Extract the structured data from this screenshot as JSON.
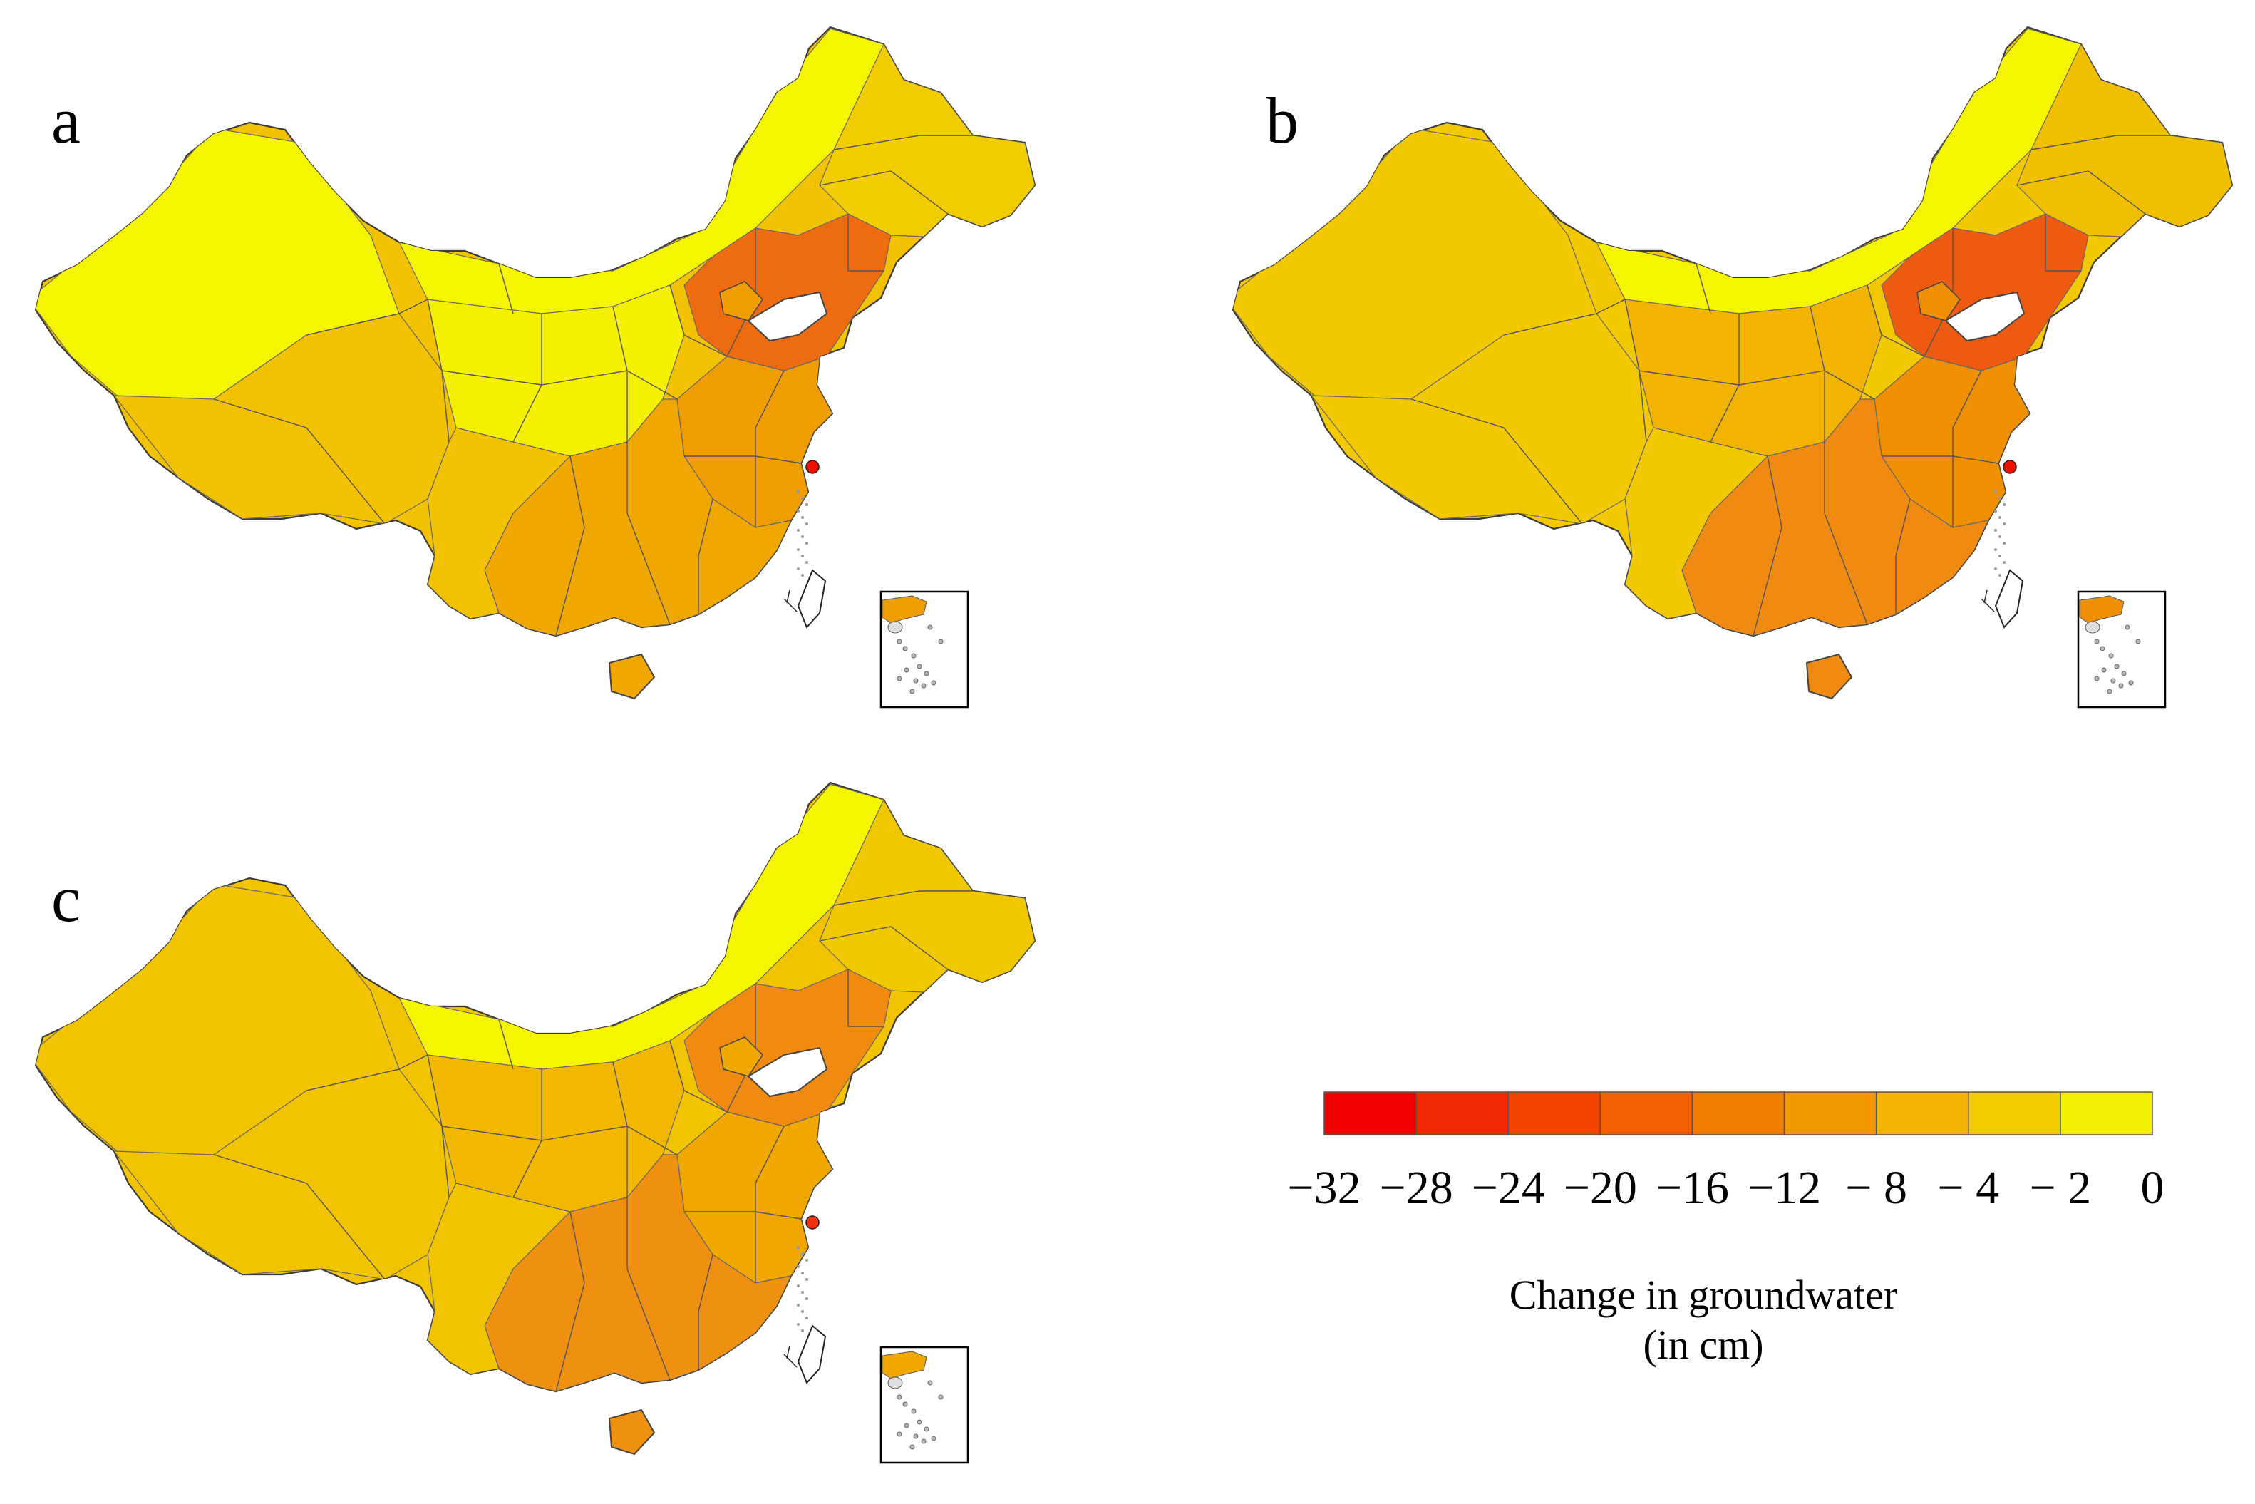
{
  "figure": {
    "panels": [
      {
        "label": "a",
        "base_color": "#f2c200",
        "north_color": "#f5f500",
        "west_color": "#f5f500",
        "ne_color": "#f0cc00",
        "ncp_color": "#ee6b10",
        "east_color": "#f09d00",
        "south_color": "#f0a800",
        "center_color": "#f5f000",
        "hotspot_color": "#ee1100"
      },
      {
        "label": "b",
        "base_color": "#f2c800",
        "north_color": "#f5f500",
        "west_color": "#f2c800",
        "ne_color": "#f0c000",
        "ncp_color": "#ee5a10",
        "east_color": "#f09000",
        "south_color": "#f08a10",
        "center_color": "#f2b400",
        "hotspot_color": "#ee1100"
      },
      {
        "label": "c",
        "base_color": "#f2c400",
        "north_color": "#f5f500",
        "west_color": "#f2c400",
        "ne_color": "#f0c800",
        "ncp_color": "#f08a10",
        "east_color": "#f0a800",
        "south_color": "#f09010",
        "center_color": "#f2b800",
        "hotspot_color": "#ee3311"
      }
    ]
  },
  "legend": {
    "title_line1": "Change in groundwater",
    "title_line2": "(in cm)",
    "ticks": [
      "−32",
      "−28",
      "−24",
      "−20",
      "−16",
      "−12",
      "− 8",
      "− 4",
      "− 2",
      "0"
    ],
    "bins": [
      {
        "range": [
          -32,
          -28
        ],
        "color": "#f20000"
      },
      {
        "range": [
          -28,
          -24
        ],
        "color": "#f22800"
      },
      {
        "range": [
          -24,
          -20
        ],
        "color": "#f24400"
      },
      {
        "range": [
          -20,
          -16
        ],
        "color": "#f26000"
      },
      {
        "range": [
          -16,
          -12
        ],
        "color": "#f27c00"
      },
      {
        "range": [
          -12,
          -8
        ],
        "color": "#f29800"
      },
      {
        "range": [
          -8,
          -4
        ],
        "color": "#f2b400"
      },
      {
        "range": [
          -4,
          -2
        ],
        "color": "#f2cc00"
      },
      {
        "range": [
          -2,
          0
        ],
        "color": "#f2f000"
      }
    ]
  }
}
